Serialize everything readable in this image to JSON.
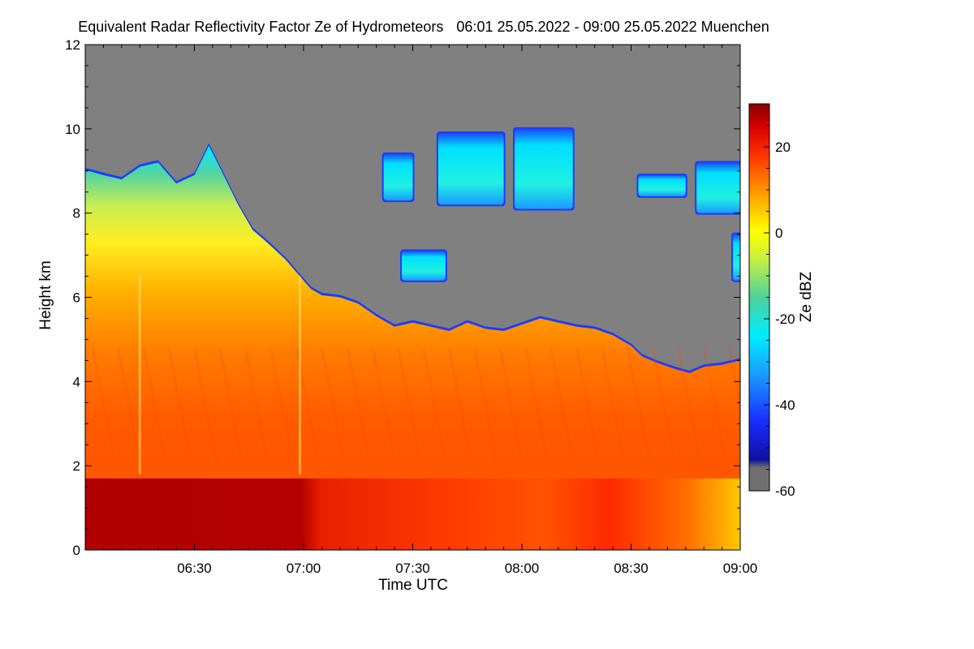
{
  "chart_data": {
    "type": "heatmap",
    "title": "Equivalent Radar Reflectivity Factor Ze of Hydrometeors",
    "subtitle": "06:01 25.05.2022 - 09:00 25.05.2022 Muenchen",
    "xlabel": "Time UTC",
    "ylabel": "Height km",
    "colorbar_label": "Ze dBZ",
    "x_start": "06:01",
    "x_end": "09:00",
    "x_ticks": [
      {
        "label": "06:30",
        "minute": 30
      },
      {
        "label": "07:00",
        "minute": 60
      },
      {
        "label": "07:30",
        "minute": 90
      },
      {
        "label": "08:00",
        "minute": 120
      },
      {
        "label": "08:30",
        "minute": 150
      },
      {
        "label": "09:00",
        "minute": 180
      }
    ],
    "y_ticks": [
      {
        "label": "0",
        "value": 0
      },
      {
        "label": "2",
        "value": 2
      },
      {
        "label": "4",
        "value": 4
      },
      {
        "label": "6",
        "value": 6
      },
      {
        "label": "8",
        "value": 8
      },
      {
        "label": "10",
        "value": 10
      },
      {
        "label": "12",
        "value": 12
      }
    ],
    "ylim": [
      0,
      12
    ],
    "colorbar_ticks": [
      {
        "label": "20",
        "value": 20
      },
      {
        "label": "0",
        "value": 0
      },
      {
        "label": "-20",
        "value": -20
      },
      {
        "label": "-40",
        "value": -40
      },
      {
        "label": "-60",
        "value": -60
      }
    ],
    "color_range": [
      -60,
      30
    ],
    "nodata_color": "#808080",
    "cloud_top_km": [
      {
        "minute": 1,
        "top": 9.0
      },
      {
        "minute": 5,
        "top": 8.9
      },
      {
        "minute": 10,
        "top": 8.8
      },
      {
        "minute": 15,
        "top": 9.1
      },
      {
        "minute": 20,
        "top": 9.2
      },
      {
        "minute": 25,
        "top": 8.7
      },
      {
        "minute": 30,
        "top": 8.9
      },
      {
        "minute": 34,
        "top": 9.6
      },
      {
        "minute": 38,
        "top": 8.9
      },
      {
        "minute": 42,
        "top": 8.2
      },
      {
        "minute": 46,
        "top": 7.6
      },
      {
        "minute": 50,
        "top": 7.3
      },
      {
        "minute": 55,
        "top": 6.9
      },
      {
        "minute": 58,
        "top": 6.6
      },
      {
        "minute": 62,
        "top": 6.2
      },
      {
        "minute": 65,
        "top": 6.05
      },
      {
        "minute": 70,
        "top": 6.0
      },
      {
        "minute": 75,
        "top": 5.85
      },
      {
        "minute": 80,
        "top": 5.55
      },
      {
        "minute": 85,
        "top": 5.3
      },
      {
        "minute": 90,
        "top": 5.4
      },
      {
        "minute": 95,
        "top": 5.3
      },
      {
        "minute": 100,
        "top": 5.2
      },
      {
        "minute": 105,
        "top": 5.4
      },
      {
        "minute": 110,
        "top": 5.25
      },
      {
        "minute": 115,
        "top": 5.2
      },
      {
        "minute": 120,
        "top": 5.35
      },
      {
        "minute": 125,
        "top": 5.5
      },
      {
        "minute": 130,
        "top": 5.4
      },
      {
        "minute": 135,
        "top": 5.3
      },
      {
        "minute": 140,
        "top": 5.25
      },
      {
        "minute": 145,
        "top": 5.1
      },
      {
        "minute": 150,
        "top": 4.85
      },
      {
        "minute": 153,
        "top": 4.6
      },
      {
        "minute": 157,
        "top": 4.45
      },
      {
        "minute": 162,
        "top": 4.3
      },
      {
        "minute": 166,
        "top": 4.2
      },
      {
        "minute": 170,
        "top": 4.35
      },
      {
        "minute": 175,
        "top": 4.4
      },
      {
        "minute": 180,
        "top": 4.5
      }
    ],
    "upper_cloud_patches": [
      {
        "start": 82,
        "end": 90,
        "bottom": 8.3,
        "top": 9.4
      },
      {
        "start": 97,
        "end": 115,
        "bottom": 8.2,
        "top": 9.9
      },
      {
        "start": 118,
        "end": 134,
        "bottom": 8.1,
        "top": 10.0
      },
      {
        "start": 152,
        "end": 165,
        "bottom": 8.4,
        "top": 8.9
      },
      {
        "start": 168,
        "end": 180,
        "bottom": 8.0,
        "top": 9.2
      },
      {
        "start": 87,
        "end": 99,
        "bottom": 6.4,
        "top": 7.1
      },
      {
        "start": 178,
        "end": 180,
        "bottom": 6.4,
        "top": 7.5
      }
    ],
    "melting_layer_km": 1.7,
    "intense_rain_until_minute": 65
  }
}
